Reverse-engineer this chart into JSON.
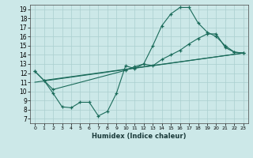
{
  "title": "",
  "xlabel": "Humidex (Indice chaleur)",
  "bg_color": "#cce8e8",
  "grid_color": "#aacfcf",
  "line_color": "#1a6b5a",
  "xlim": [
    -0.5,
    23.5
  ],
  "ylim": [
    6.5,
    19.5
  ],
  "xticks": [
    0,
    1,
    2,
    3,
    4,
    5,
    6,
    7,
    8,
    9,
    10,
    11,
    12,
    13,
    14,
    15,
    16,
    17,
    18,
    19,
    20,
    21,
    22,
    23
  ],
  "yticks": [
    7,
    8,
    9,
    10,
    11,
    12,
    13,
    14,
    15,
    16,
    17,
    18,
    19
  ],
  "line1_x": [
    0,
    1,
    2,
    3,
    4,
    5,
    6,
    7,
    8,
    9,
    10,
    11,
    12,
    13,
    14,
    15,
    16,
    17,
    18,
    19,
    20,
    21,
    22,
    23
  ],
  "line1_y": [
    12.2,
    11.2,
    9.8,
    8.3,
    8.2,
    8.8,
    8.8,
    7.3,
    7.8,
    9.8,
    12.8,
    12.5,
    13.0,
    15.0,
    17.2,
    18.5,
    19.2,
    19.2,
    17.5,
    16.5,
    16.0,
    15.0,
    14.3,
    14.2
  ],
  "line2_x": [
    0,
    1,
    2,
    10,
    11,
    12,
    13,
    14,
    15,
    16,
    17,
    18,
    19,
    20,
    21,
    22,
    23
  ],
  "line2_y": [
    12.2,
    11.2,
    10.2,
    12.3,
    12.7,
    13.0,
    12.8,
    13.5,
    14.0,
    14.5,
    15.2,
    15.8,
    16.3,
    16.3,
    14.8,
    14.3,
    14.2
  ],
  "line3_x": [
    0,
    23
  ],
  "line3_y": [
    11.0,
    14.2
  ],
  "line4_x": [
    1,
    23
  ],
  "line4_y": [
    11.2,
    14.2
  ]
}
